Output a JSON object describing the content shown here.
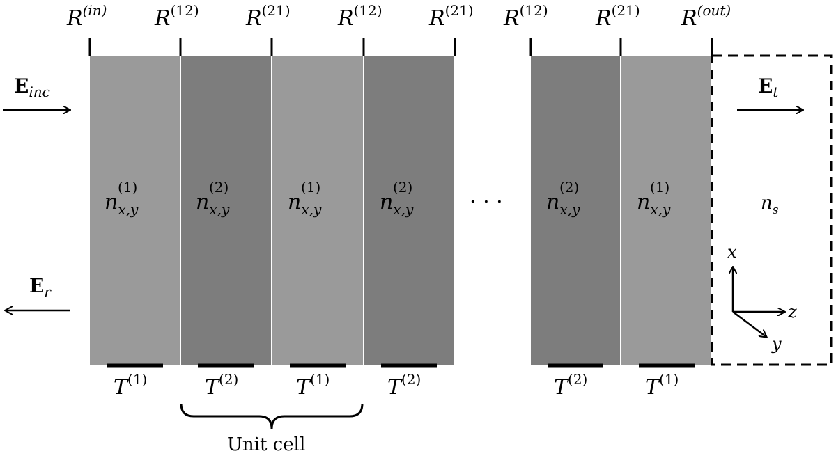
{
  "interface_labels": {
    "symbol": "R",
    "superscripts": [
      "(in)",
      "(12)",
      "(21)",
      "(12)",
      "(21)",
      "(12)",
      "(21)",
      "(out)"
    ]
  },
  "layers": {
    "index_symbol": "n",
    "index_subscript": "x,y",
    "items": [
      {
        "sup": "(1)",
        "fill": "#9a9a9a"
      },
      {
        "sup": "(2)",
        "fill": "#7d7d7d"
      },
      {
        "sup": "(1)",
        "fill": "#9a9a9a"
      },
      {
        "sup": "(2)",
        "fill": "#7d7d7d"
      },
      {
        "sup": "(2)",
        "fill": "#7d7d7d"
      },
      {
        "sup": "(1)",
        "fill": "#9a9a9a"
      }
    ]
  },
  "transfer_labels": {
    "symbol": "T",
    "superscripts": [
      "(1)",
      "(2)",
      "(1)",
      "(2)",
      "(2)",
      "(1)"
    ]
  },
  "fields": {
    "incident": {
      "symbol": "E",
      "sub": "inc"
    },
    "reflected": {
      "symbol": "E",
      "sub": "r"
    },
    "transmitted": {
      "symbol": "E",
      "sub": "t"
    }
  },
  "substrate": {
    "symbol": "n",
    "sub": "s"
  },
  "ellipsis": "· · ·",
  "axes": {
    "x": "x",
    "y": "y",
    "z": "z"
  },
  "unit_cell_label": "Unit cell"
}
